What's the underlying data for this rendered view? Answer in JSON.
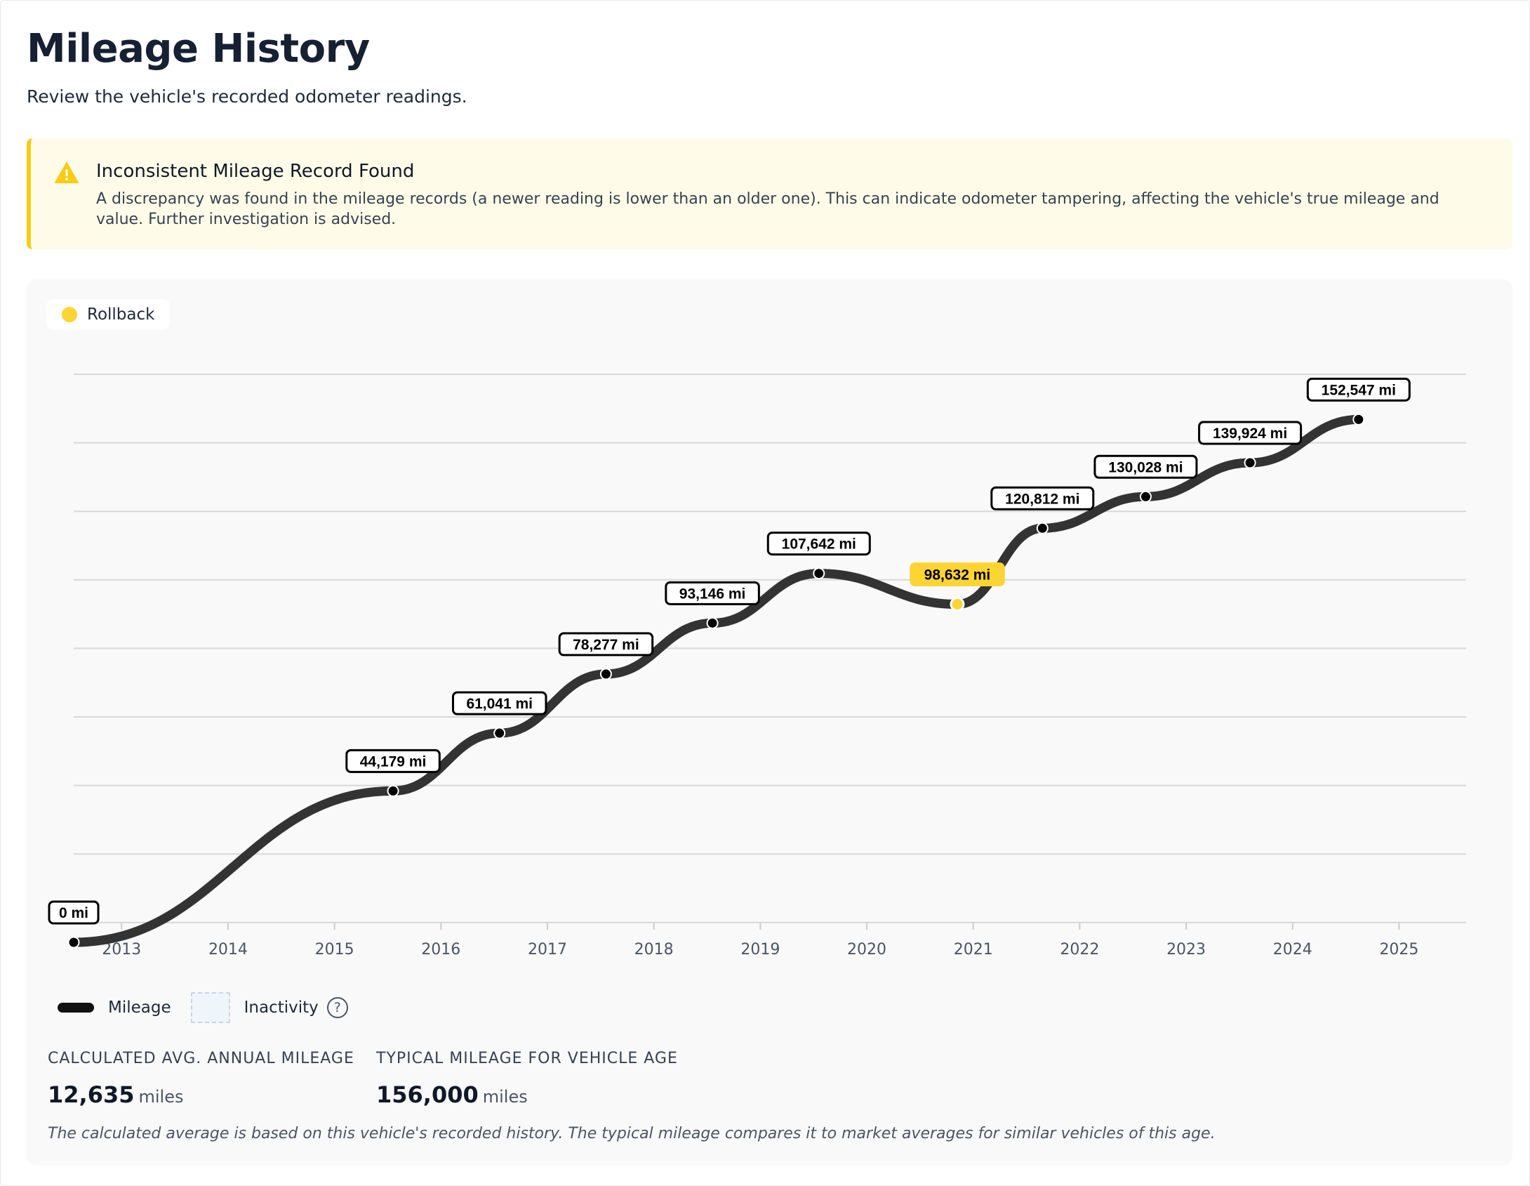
{
  "header": {
    "title": "Mileage History",
    "subtitle": "Review the vehicle's recorded odometer readings."
  },
  "alert": {
    "icon": "warning-icon",
    "title": "Inconsistent Mileage Record Found",
    "body": "A discrepancy was found in the mileage records (a newer reading is lower than an older one). This can indicate odometer tampering, affecting the vehicle's true mileage and value. Further investigation is advised."
  },
  "rollback_badge": {
    "label": "Rollback",
    "color": "#fcd535"
  },
  "legend": {
    "mileage_label": "Mileage",
    "inactivity_label": "Inactivity",
    "help_icon": "question-circle-icon",
    "help_glyph": "?"
  },
  "stats": {
    "avg_label": "Calculated Avg. Annual Mileage",
    "avg_value": "12,635",
    "avg_unit": "miles",
    "typical_label": "Typical Mileage for Vehicle Age",
    "typical_value": "156,000",
    "typical_unit": "miles"
  },
  "footnote": "The calculated average is based on this vehicle's recorded history. The typical mileage compares it to market averages for similar vehicles of this age.",
  "colors": {
    "line": "#333333",
    "rollback": "#fcd535",
    "alert_bg": "#fefce8",
    "alert_border": "#facc15"
  },
  "chart_data": {
    "type": "line",
    "x_ticks": [
      "2013",
      "2014",
      "2015",
      "2016",
      "2017",
      "2018",
      "2019",
      "2020",
      "2021",
      "2022",
      "2023",
      "2024",
      "2025"
    ],
    "xlim": [
      2012.55,
      2025.63
    ],
    "ylim": [
      0,
      160000
    ],
    "grid": true,
    "points": [
      {
        "x": 2012.55,
        "y": 0,
        "label": "0 mi",
        "rollback": false
      },
      {
        "x": 2015.55,
        "y": 44179,
        "label": "44,179 mi",
        "rollback": false
      },
      {
        "x": 2016.55,
        "y": 61041,
        "label": "61,041 mi",
        "rollback": false
      },
      {
        "x": 2017.55,
        "y": 78277,
        "label": "78,277 mi",
        "rollback": false
      },
      {
        "x": 2018.55,
        "y": 93146,
        "label": "93,146 mi",
        "rollback": false
      },
      {
        "x": 2019.55,
        "y": 107642,
        "label": "107,642 mi",
        "rollback": false
      },
      {
        "x": 2020.85,
        "y": 98632,
        "label": "98,632 mi",
        "rollback": true
      },
      {
        "x": 2021.65,
        "y": 120812,
        "label": "120,812 mi",
        "rollback": false
      },
      {
        "x": 2022.62,
        "y": 130028,
        "label": "130,028 mi",
        "rollback": false
      },
      {
        "x": 2023.6,
        "y": 139924,
        "label": "139,924 mi",
        "rollback": false
      },
      {
        "x": 2024.62,
        "y": 152547,
        "label": "152,547 mi",
        "rollback": false
      }
    ]
  }
}
